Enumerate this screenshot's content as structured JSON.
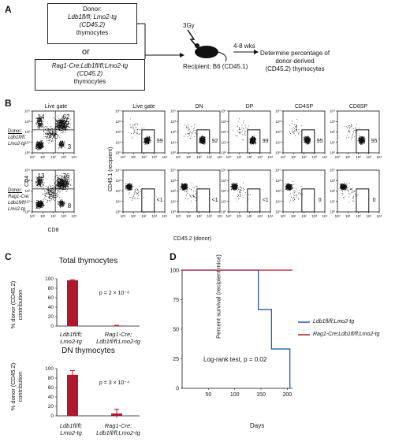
{
  "panels": {
    "a": "A",
    "b": "B",
    "c": "C",
    "d": "D"
  },
  "panel_a": {
    "donor1": {
      "l1": "Donor:",
      "l2": "Ldb1fl/fl; Lmo2-tg",
      "l3": "(CD45.2)",
      "l4": "thymocytes"
    },
    "or": "or",
    "donor2": {
      "l1": "Rag1-Cre;Ldb1fl/fl;Lmo2-tg",
      "l2": "(CD45.2)",
      "l3": "thymocytes"
    },
    "irradiation": "3Gy",
    "recipient": "Recipient: B6 (CD45.1)",
    "interval": "4-8 wks",
    "outcome": {
      "l1": "Determine percentage of",
      "l2": "donor-derived",
      "l3": "(CD45.2) thymocytes"
    }
  },
  "panel_b": {
    "col_titles": [
      "Live gate",
      "Live gate",
      "DN",
      "DP",
      "CD4SP",
      "CD8SP"
    ],
    "row_labels": [
      {
        "l1": "Donor:",
        "l2": "Ldb1fl/fl;",
        "l3": "Lmo2-tg"
      },
      {
        "l1": "Donor:",
        "l2": "Rag1-Cre;",
        "l3": "Ldb1fl/fl;",
        "l4": "Lmo2-tg"
      }
    ],
    "cd4cd8_axes": {
      "x": "CD8",
      "y": "CD4"
    },
    "cd45_axes": {
      "x": "CD45.2 (donor)",
      "y": "CD45.1 (recipient)"
    },
    "quadrants": [
      {
        "tl": "14",
        "tr": "62",
        "br": "3"
      },
      {
        "tl": "13",
        "tr": "76",
        "br": "8"
      }
    ],
    "gate_values": [
      [
        "99",
        "92",
        "99",
        "95",
        "95"
      ],
      [
        "<1",
        "<1",
        "<1",
        "0",
        "0"
      ]
    ],
    "ticks": [
      "10⁰",
      "10¹",
      "10²",
      "10³",
      "10⁴"
    ]
  },
  "panel_c": {
    "charts": [
      {
        "title": "Total thymocytes",
        "pvalue": "p = 2 × 10⁻⁸"
      },
      {
        "title": "DN thymocytes",
        "pvalue": "p = 3 × 10⁻⁴"
      }
    ],
    "ylabel_l1": "% donor (CD45.2)",
    "ylabel_l2": "contribution",
    "xcat1_l1": "Ldb1fl/fl;",
    "xcat1_l2": "Lmo2-tg",
    "xcat2_l1": "Rag1-Cre;",
    "xcat2_l2": "Ldb1fl/fl;Lmo2-tg"
  },
  "panel_d": {
    "ylabel": "Percent survival (recipient mice)",
    "xlabel": "Days",
    "stat": "Log-rank test, p = 0.02",
    "legend": [
      "Ldb1fl/fl;Lmo2-tg",
      "Rag1-Cre;Ldb1fl/fl;Lmo2-tg"
    ]
  },
  "colors": {
    "bar": "#b0182e",
    "line_blue": "#2c57a3",
    "line_red": "#b0182e"
  },
  "chart_data": [
    {
      "type": "bar",
      "categories": [
        "Ldb1fl/fl; Lmo2-tg",
        "Rag1-Cre; Ldb1fl/fl;Lmo2-tg"
      ],
      "values": [
        97,
        1
      ],
      "errors": [
        1,
        0.5
      ],
      "title": "Total thymocytes",
      "ylabel": "% donor (CD45.2) contribution",
      "ylim": [
        0,
        100
      ],
      "yticks": [
        0,
        20,
        40,
        60,
        80,
        100
      ]
    },
    {
      "type": "bar",
      "categories": [
        "Ldb1fl/fl; Lmo2-tg",
        "Rag1-Cre; Ldb1fl/fl;Lmo2-tg"
      ],
      "values": [
        87,
        5
      ],
      "errors": [
        9,
        9
      ],
      "title": "DN thymocytes",
      "ylabel": "% donor (CD45.2) contribution",
      "ylim": [
        0,
        100
      ],
      "yticks": [
        0,
        20,
        40,
        60,
        80,
        100
      ]
    },
    {
      "type": "line",
      "subtype": "survival-step",
      "xlabel": "Days",
      "ylabel": "Percent survival (recipient mice)",
      "xlim": [
        0,
        210
      ],
      "ylim": [
        0,
        100
      ],
      "xticks": [
        50,
        100,
        150,
        200
      ],
      "yticks": [
        0,
        25,
        50,
        75,
        100
      ],
      "series": [
        {
          "name": "Ldb1fl/fl;Lmo2-tg",
          "x": [
            0,
            145,
            145,
            170,
            170,
            180,
            180,
            205,
            205
          ],
          "y": [
            100,
            100,
            66.7,
            66.7,
            33.3,
            33.3,
            33.3,
            33.3,
            0
          ]
        },
        {
          "name": "Rag1-Cre;Ldb1fl/fl;Lmo2-tg",
          "x": [
            0,
            210
          ],
          "y": [
            100,
            100
          ]
        }
      ]
    }
  ]
}
